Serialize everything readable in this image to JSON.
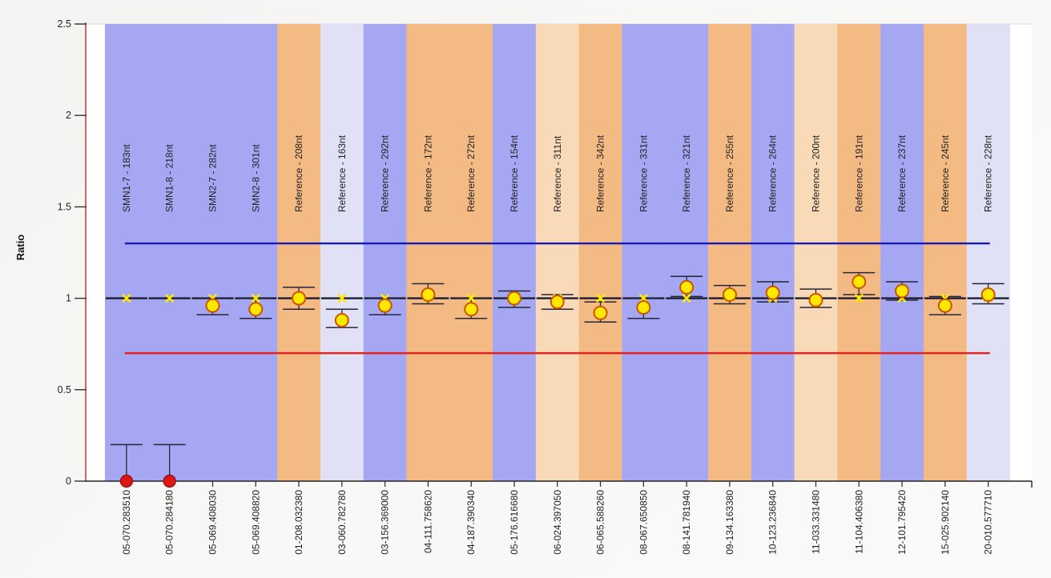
{
  "page": {
    "background": "#f5f5f4"
  },
  "chart_data": {
    "type": "scatter",
    "title": "",
    "xlabel": "",
    "ylabel": "Ratio",
    "ylim": [
      0,
      2.5
    ],
    "yticks": [
      0,
      0.5,
      1,
      1.5,
      2,
      2.5
    ],
    "ytick_labels": [
      "0",
      "0.5",
      "1",
      "1.5",
      "2",
      "2.5"
    ],
    "grid": false,
    "legend": "none",
    "reference_ratio": 1.0,
    "thresholds": {
      "upper": {
        "value": 1.3,
        "color": "#1818bb"
      },
      "lower": {
        "value": 0.7,
        "color": "#dd2525"
      }
    },
    "axis_colors": {
      "y_axis": "#c22828",
      "x_axis": "#222222",
      "tick": "#333333",
      "tick_label": "#222222"
    },
    "band_palette": {
      "blue": "#a5a7f2",
      "orange": "#f3ba84",
      "lavender": "#e1e1f6",
      "peach": "#f8dab8"
    },
    "marker_style": {
      "normal_fill": "#ffe800",
      "normal_stroke": "#cc5500",
      "deleted_fill": "#dd1515",
      "deleted_stroke": "#991111",
      "reference_x_color": "#ffe800",
      "errorbar_color": "#24243a"
    },
    "points": [
      {
        "probe": "SMN1-7 - 183nt",
        "id": "05-070.283510",
        "band": "blue",
        "ratio": 0.0,
        "err_hi": 0.2,
        "err_lo": 0.0,
        "marker": "deleted"
      },
      {
        "probe": "SMN1-8 - 218nt",
        "id": "05-070.284180",
        "band": "blue",
        "ratio": 0.0,
        "err_hi": 0.2,
        "err_lo": 0.0,
        "marker": "deleted"
      },
      {
        "probe": "SMN2-7 - 282nt",
        "id": "05-069.408030",
        "band": "blue",
        "ratio": 0.96,
        "err_hi": 1.0,
        "err_lo": 0.91,
        "marker": "normal"
      },
      {
        "probe": "SMN2-8 - 301nt",
        "id": "05-069.408820",
        "band": "blue",
        "ratio": 0.94,
        "err_hi": 1.0,
        "err_lo": 0.89,
        "marker": "normal"
      },
      {
        "probe": "Reference - 208nt",
        "id": "01-208.032380",
        "band": "orange",
        "ratio": 1.0,
        "err_hi": 1.06,
        "err_lo": 0.94,
        "marker": "normal"
      },
      {
        "probe": "Reference - 163nt",
        "id": "03-060.782780",
        "band": "lavender",
        "ratio": 0.88,
        "err_hi": 0.94,
        "err_lo": 0.84,
        "marker": "normal"
      },
      {
        "probe": "Reference - 292nt",
        "id": "03-156.369000",
        "band": "blue",
        "ratio": 0.96,
        "err_hi": 1.0,
        "err_lo": 0.91,
        "marker": "normal"
      },
      {
        "probe": "Reference - 172nt",
        "id": "04-111.758620",
        "band": "orange",
        "ratio": 1.02,
        "err_hi": 1.08,
        "err_lo": 0.97,
        "marker": "normal"
      },
      {
        "probe": "Reference - 272nt",
        "id": "04-187.390340",
        "band": "orange",
        "ratio": 0.94,
        "err_hi": 1.0,
        "err_lo": 0.89,
        "marker": "normal"
      },
      {
        "probe": "Reference - 154nt",
        "id": "05-176.616680",
        "band": "blue",
        "ratio": 1.0,
        "err_hi": 1.04,
        "err_lo": 0.95,
        "marker": "normal"
      },
      {
        "probe": "Reference - 311nt",
        "id": "06-024.397050",
        "band": "peach",
        "ratio": 0.98,
        "err_hi": 1.02,
        "err_lo": 0.94,
        "marker": "normal"
      },
      {
        "probe": "Reference - 342nt",
        "id": "06-065.588260",
        "band": "orange",
        "ratio": 0.92,
        "err_hi": 0.98,
        "err_lo": 0.87,
        "marker": "normal"
      },
      {
        "probe": "Reference - 331nt",
        "id": "08-067.650850",
        "band": "blue",
        "ratio": 0.95,
        "err_hi": 1.0,
        "err_lo": 0.89,
        "marker": "normal"
      },
      {
        "probe": "Reference - 321nt",
        "id": "08-141.781940",
        "band": "blue",
        "ratio": 1.06,
        "err_hi": 1.12,
        "err_lo": 1.01,
        "marker": "normal"
      },
      {
        "probe": "Reference - 255nt",
        "id": "09-134.163380",
        "band": "orange",
        "ratio": 1.02,
        "err_hi": 1.07,
        "err_lo": 0.97,
        "marker": "normal"
      },
      {
        "probe": "Reference - 264nt",
        "id": "10-123.236840",
        "band": "blue",
        "ratio": 1.03,
        "err_hi": 1.09,
        "err_lo": 0.98,
        "marker": "normal"
      },
      {
        "probe": "Reference - 200nt",
        "id": "11-033.331480",
        "band": "peach",
        "ratio": 0.99,
        "err_hi": 1.05,
        "err_lo": 0.95,
        "marker": "normal"
      },
      {
        "probe": "Reference - 191nt",
        "id": "11-104.406380",
        "band": "orange",
        "ratio": 1.09,
        "err_hi": 1.14,
        "err_lo": 1.02,
        "marker": "normal"
      },
      {
        "probe": "Reference - 237nt",
        "id": "12-101.795420",
        "band": "blue",
        "ratio": 1.04,
        "err_hi": 1.09,
        "err_lo": 0.99,
        "marker": "normal"
      },
      {
        "probe": "Reference - 245nt",
        "id": "15-025.902140",
        "band": "orange",
        "ratio": 0.96,
        "err_hi": 1.01,
        "err_lo": 0.91,
        "marker": "normal"
      },
      {
        "probe": "Reference - 228nt",
        "id": "20-010.577710",
        "band": "lavender",
        "ratio": 1.02,
        "err_hi": 1.08,
        "err_lo": 0.97,
        "marker": "normal"
      }
    ]
  }
}
